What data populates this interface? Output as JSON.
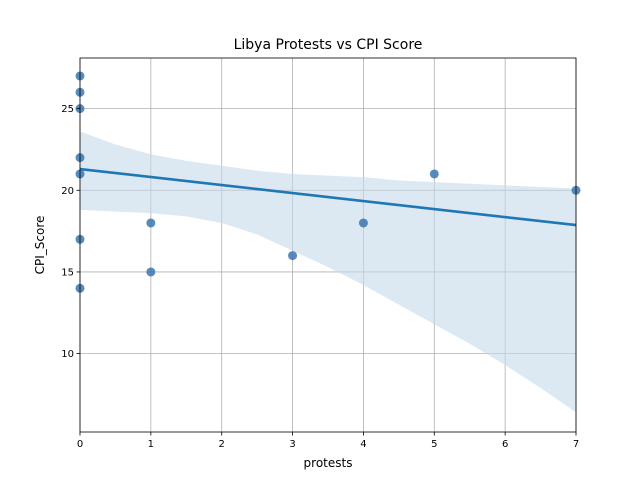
{
  "chart_data": {
    "type": "scatter",
    "title": "Libya Protests vs CPI Score",
    "xlabel": "protests",
    "ylabel": "CPI_Score",
    "xlim": [
      0,
      7
    ],
    "ylim": [
      5.2,
      28.1
    ],
    "xticks": [
      0,
      1,
      2,
      3,
      4,
      5,
      6,
      7
    ],
    "yticks": [
      10,
      15,
      20,
      25
    ],
    "grid": true,
    "points": [
      {
        "x": 0,
        "y": 27
      },
      {
        "x": 0,
        "y": 26
      },
      {
        "x": 0,
        "y": 25
      },
      {
        "x": 0,
        "y": 22
      },
      {
        "x": 0,
        "y": 21
      },
      {
        "x": 0,
        "y": 17
      },
      {
        "x": 0,
        "y": 14
      },
      {
        "x": 1,
        "y": 18
      },
      {
        "x": 1,
        "y": 15
      },
      {
        "x": 3,
        "y": 16
      },
      {
        "x": 4,
        "y": 18
      },
      {
        "x": 5,
        "y": 21
      },
      {
        "x": 7,
        "y": 20
      }
    ],
    "regression": {
      "intercept": 21.3,
      "slope": -0.49
    },
    "confidence_band": [
      {
        "x": 0,
        "lo": 18.8,
        "hi": 23.6
      },
      {
        "x": 0.5,
        "lo": 18.7,
        "hi": 22.8
      },
      {
        "x": 1,
        "lo": 18.6,
        "hi": 22.2
      },
      {
        "x": 1.5,
        "lo": 18.4,
        "hi": 21.8
      },
      {
        "x": 2,
        "lo": 18.0,
        "hi": 21.5
      },
      {
        "x": 2.5,
        "lo": 17.3,
        "hi": 21.2
      },
      {
        "x": 3,
        "lo": 16.3,
        "hi": 21.0
      },
      {
        "x": 3.5,
        "lo": 15.3,
        "hi": 20.9
      },
      {
        "x": 4,
        "lo": 14.2,
        "hi": 20.8
      },
      {
        "x": 4.5,
        "lo": 13.0,
        "hi": 20.6
      },
      {
        "x": 5,
        "lo": 11.8,
        "hi": 20.5
      },
      {
        "x": 5.5,
        "lo": 10.6,
        "hi": 20.4
      },
      {
        "x": 6,
        "lo": 9.3,
        "hi": 20.3
      },
      {
        "x": 6.5,
        "lo": 7.9,
        "hi": 20.2
      },
      {
        "x": 7,
        "lo": 6.4,
        "hi": 20.1
      }
    ],
    "colors": {
      "points": "#3b75af",
      "line": "#1f77b4",
      "band": "#c5d8ea",
      "grid": "#b0b0b0"
    }
  }
}
